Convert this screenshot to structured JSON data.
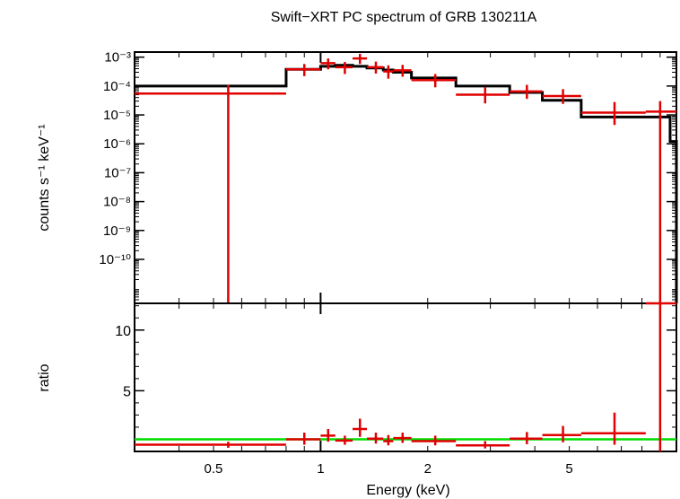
{
  "chart_data": [
    {
      "type": "scatter",
      "title": "Swift−XRT PC spectrum of GRB 130211A",
      "xlabel": "",
      "ylabel": "counts s⁻¹ keV⁻¹",
      "xscale": "log",
      "yscale": "log",
      "xlim": [
        0.3,
        10
      ],
      "ylim": [
        3e-12,
        0.0015
      ],
      "ytick_labels": [
        "10⁻³",
        "10⁻⁴",
        "10⁻⁵",
        "10⁻⁶",
        "10⁻⁷",
        "10⁻⁸",
        "10⁻⁹",
        "10⁻¹⁰"
      ],
      "ytick_values": [
        0.001,
        0.0001,
        1e-05,
        1e-06,
        1e-07,
        1e-08,
        1e-09,
        1e-10
      ],
      "series": [
        {
          "kind": "data",
          "color": "#e00000",
          "points": [
            {
              "x": 0.55,
              "xlo": 0.3,
              "xhi": 0.8,
              "y": 5.5e-05,
              "ylo": 1e-13,
              "yhi": 0.00011
            },
            {
              "x": 0.9,
              "xlo": 0.8,
              "xhi": 1.0,
              "y": 0.00038,
              "ylo": 0.00022,
              "yhi": 0.00058
            },
            {
              "x": 1.05,
              "xlo": 1.0,
              "xhi": 1.1,
              "y": 0.00062,
              "ylo": 0.00038,
              "yhi": 0.0009
            },
            {
              "x": 1.17,
              "xlo": 1.1,
              "xhi": 1.23,
              "y": 0.00045,
              "ylo": 0.00026,
              "yhi": 0.00068
            },
            {
              "x": 1.29,
              "xlo": 1.23,
              "xhi": 1.35,
              "y": 0.0009,
              "ylo": 0.00058,
              "yhi": 0.0013
            },
            {
              "x": 1.43,
              "xlo": 1.35,
              "xhi": 1.5,
              "y": 0.00045,
              "ylo": 0.00027,
              "yhi": 0.0007
            },
            {
              "x": 1.55,
              "xlo": 1.5,
              "xhi": 1.6,
              "y": 0.00032,
              "ylo": 0.00018,
              "yhi": 0.00052
            },
            {
              "x": 1.7,
              "xlo": 1.6,
              "xhi": 1.8,
              "y": 0.00035,
              "ylo": 0.00021,
              "yhi": 0.00054
            },
            {
              "x": 2.1,
              "xlo": 1.8,
              "xhi": 2.4,
              "y": 0.00016,
              "ylo": 9e-05,
              "yhi": 0.00026
            },
            {
              "x": 2.9,
              "xlo": 2.4,
              "xhi": 3.4,
              "y": 5e-05,
              "ylo": 2.5e-05,
              "yhi": 9e-05
            },
            {
              "x": 3.8,
              "xlo": 3.4,
              "xhi": 4.2,
              "y": 6.5e-05,
              "ylo": 3.6e-05,
              "yhi": 0.00011
            },
            {
              "x": 4.8,
              "xlo": 4.2,
              "xhi": 5.4,
              "y": 4.5e-05,
              "ylo": 2.4e-05,
              "yhi": 7.8e-05
            },
            {
              "x": 6.7,
              "xlo": 5.4,
              "xhi": 8.2,
              "y": 1.2e-05,
              "ylo": 4.5e-06,
              "yhi": 2.8e-05
            },
            {
              "x": 9.0,
              "xlo": 8.2,
              "xhi": 10.0,
              "y": 1.3e-05,
              "ylo": 1e-13,
              "yhi": 3e-05
            }
          ]
        },
        {
          "kind": "model",
          "color": "#000000",
          "bins": [
            {
              "xlo": 0.3,
              "xhi": 0.8,
              "y": 0.0001
            },
            {
              "xlo": 0.8,
              "xhi": 1.0,
              "y": 0.00038
            },
            {
              "xlo": 1.0,
              "xhi": 1.1,
              "y": 0.00048
            },
            {
              "xlo": 1.1,
              "xhi": 1.23,
              "y": 0.00052
            },
            {
              "xlo": 1.23,
              "xhi": 1.35,
              "y": 0.00048
            },
            {
              "xlo": 1.35,
              "xhi": 1.5,
              "y": 0.00042
            },
            {
              "xlo": 1.5,
              "xhi": 1.6,
              "y": 0.00036
            },
            {
              "xlo": 1.6,
              "xhi": 1.8,
              "y": 0.0003
            },
            {
              "xlo": 1.8,
              "xhi": 2.4,
              "y": 0.00019
            },
            {
              "xlo": 2.4,
              "xhi": 3.4,
              "y": 0.0001
            },
            {
              "xlo": 3.4,
              "xhi": 4.2,
              "y": 6e-05
            },
            {
              "xlo": 4.2,
              "xhi": 5.4,
              "y": 3.2e-05
            },
            {
              "xlo": 5.4,
              "xhi": 9.6,
              "y": 8.5e-06
            },
            {
              "xlo": 9.6,
              "xhi": 10.0,
              "y": 1.2e-06
            }
          ]
        }
      ]
    },
    {
      "type": "scatter",
      "title": "",
      "xlabel": "Energy (keV)",
      "ylabel": "ratio",
      "xscale": "log",
      "yscale": "linear",
      "xlim": [
        0.3,
        10
      ],
      "ylim": [
        0,
        12.2
      ],
      "xtick_labels": [
        "0.5",
        "1",
        "2",
        "5"
      ],
      "xtick_values": [
        0.5,
        1,
        2,
        5
      ],
      "ytick_labels": [
        "5",
        "10"
      ],
      "ytick_values": [
        5,
        10
      ],
      "reference_line": {
        "y": 1,
        "color": "#00dd00"
      },
      "series": [
        {
          "kind": "data",
          "color": "#e00000",
          "points": [
            {
              "x": 0.55,
              "xlo": 0.3,
              "xhi": 0.8,
              "y": 0.55,
              "ylo": 0.3,
              "yhi": 0.8
            },
            {
              "x": 0.9,
              "xlo": 0.8,
              "xhi": 1.0,
              "y": 1.0,
              "ylo": 0.55,
              "yhi": 1.55
            },
            {
              "x": 1.05,
              "xlo": 1.0,
              "xhi": 1.1,
              "y": 1.3,
              "ylo": 0.8,
              "yhi": 1.85
            },
            {
              "x": 1.17,
              "xlo": 1.1,
              "xhi": 1.23,
              "y": 0.9,
              "ylo": 0.55,
              "yhi": 1.3
            },
            {
              "x": 1.29,
              "xlo": 1.23,
              "xhi": 1.35,
              "y": 1.85,
              "ylo": 1.2,
              "yhi": 2.7
            },
            {
              "x": 1.43,
              "xlo": 1.35,
              "xhi": 1.5,
              "y": 1.05,
              "ylo": 0.65,
              "yhi": 1.55
            },
            {
              "x": 1.55,
              "xlo": 1.5,
              "xhi": 1.6,
              "y": 0.85,
              "ylo": 0.5,
              "yhi": 1.35
            },
            {
              "x": 1.7,
              "xlo": 1.6,
              "xhi": 1.8,
              "y": 1.1,
              "ylo": 0.7,
              "yhi": 1.55
            },
            {
              "x": 2.1,
              "xlo": 1.8,
              "xhi": 2.4,
              "y": 0.85,
              "ylo": 0.5,
              "yhi": 1.3
            },
            {
              "x": 2.9,
              "xlo": 2.4,
              "xhi": 3.4,
              "y": 0.5,
              "ylo": 0.25,
              "yhi": 0.85
            },
            {
              "x": 3.8,
              "xlo": 3.4,
              "xhi": 4.2,
              "y": 1.05,
              "ylo": 0.6,
              "yhi": 1.6
            },
            {
              "x": 4.8,
              "xlo": 4.2,
              "xhi": 5.4,
              "y": 1.35,
              "ylo": 0.75,
              "yhi": 2.1
            },
            {
              "x": 6.7,
              "xlo": 5.4,
              "xhi": 8.2,
              "y": 1.5,
              "ylo": 0.55,
              "yhi": 3.2
            },
            {
              "x": 9.0,
              "xlo": 8.2,
              "xhi": 10.0,
              "y": 12.2,
              "ylo": 0.0,
              "yhi": 12.2
            }
          ]
        }
      ]
    }
  ]
}
